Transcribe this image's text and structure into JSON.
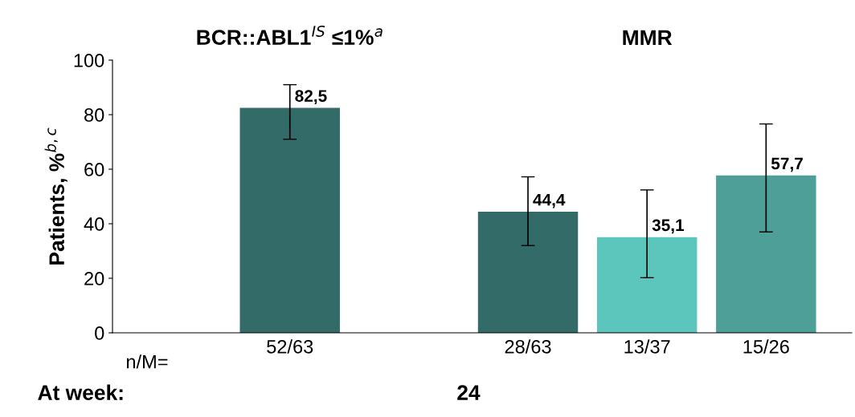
{
  "chart_data": {
    "type": "bar",
    "categories": [
      "52/63",
      null,
      "28/63",
      "13/37",
      "15/26"
    ],
    "values": [
      82.5,
      null,
      44.4,
      35.1,
      57.7
    ],
    "colors": [
      "#336b68",
      "#336b68",
      "#336b68",
      "#5cc5bc",
      "#4d9f98"
    ],
    "errors": [
      [
        71,
        91
      ],
      null,
      [
        32,
        57.2
      ],
      [
        20.2,
        52.4
      ],
      [
        37,
        76.6
      ]
    ],
    "value_labels": [
      "82,5",
      null,
      "44,4",
      "35,1",
      "57,7"
    ],
    "ylabel": "Patients, %$^{b,c}$",
    "ylim": [
      0,
      100
    ],
    "yticks": [
      0,
      20,
      40,
      60,
      80,
      100
    ],
    "grid": false,
    "annotations": [
      "BCR::ABL1$^{IS}$ ≤1%$^{a}$",
      "MMR",
      "n/M=",
      "At week:",
      "24"
    ]
  }
}
